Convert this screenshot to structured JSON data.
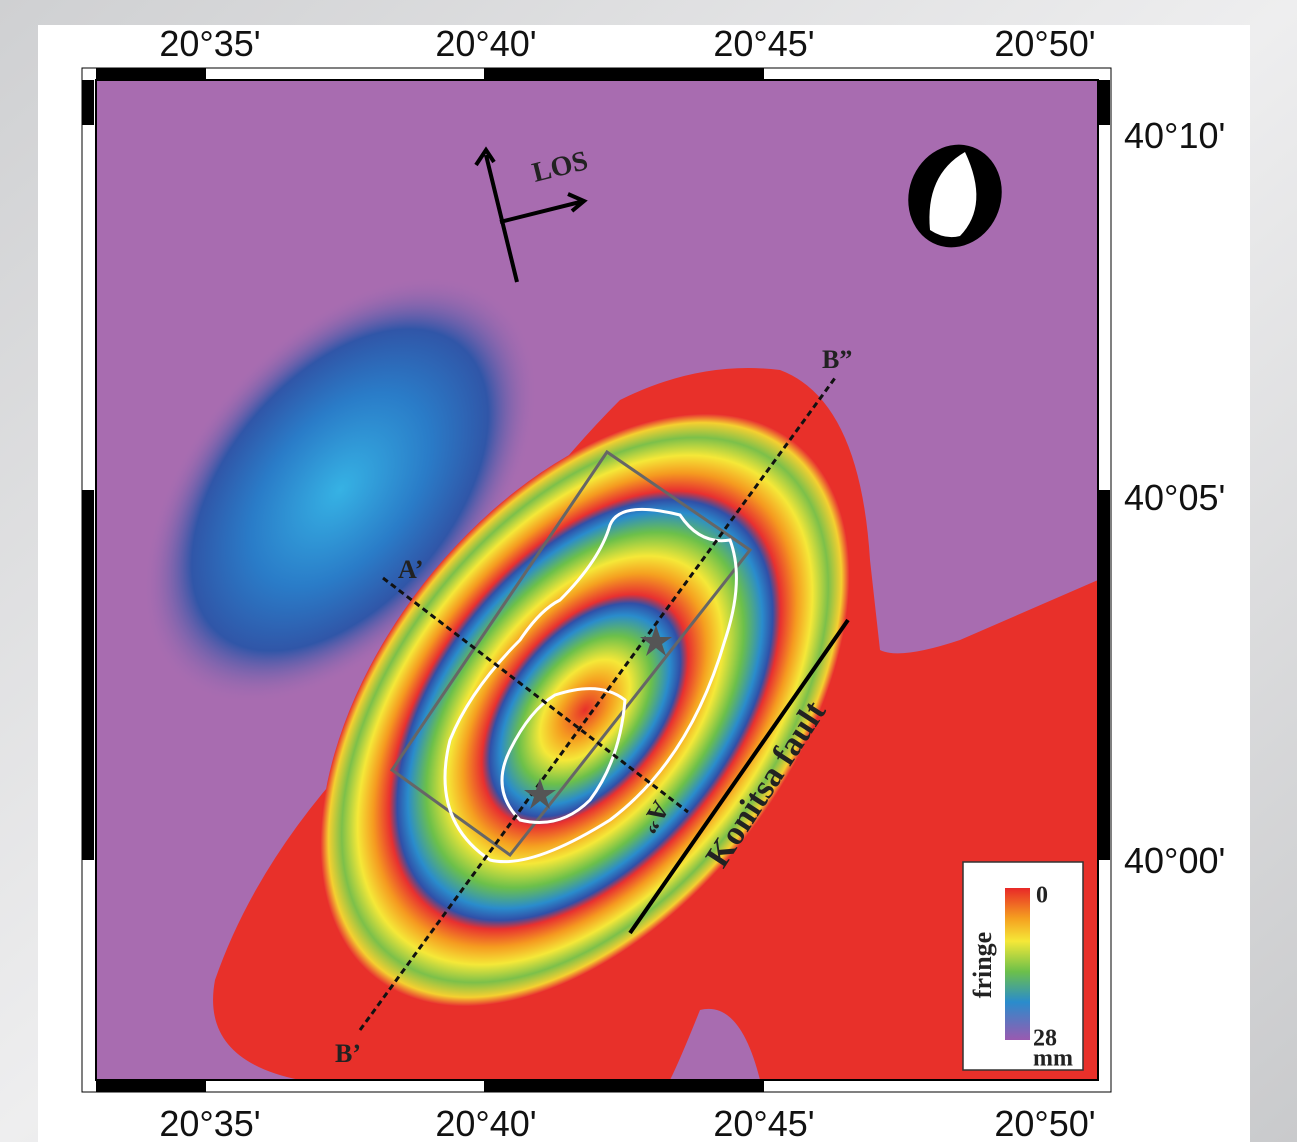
{
  "map": {
    "lon_labels": [
      "20°35'",
      "20°40'",
      "20°45'",
      "20°50'"
    ],
    "lat_labels": [
      "40°10'",
      "40°05'",
      "40°00'"
    ],
    "annotations": {
      "los": "LOS",
      "b_end": "B”",
      "b_start": "B’",
      "a_start": "A’",
      "a_end": "A”",
      "fault": "Konitsa fault"
    },
    "legend": {
      "title": "fringe",
      "top": "0",
      "bottom": "28",
      "unit": "mm"
    }
  }
}
